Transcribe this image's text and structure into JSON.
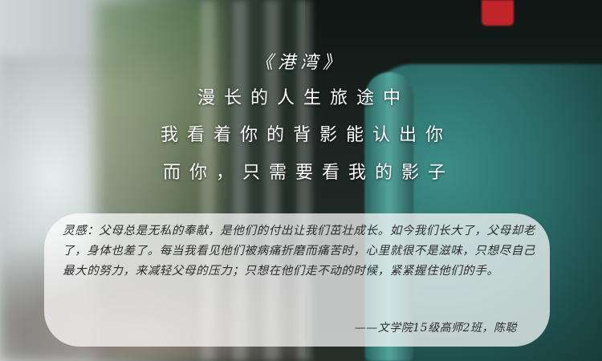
{
  "poem": {
    "title": "《港湾》",
    "lines": [
      "漫长的人生旅途中",
      "我看着你的背影能认出你",
      "而你，只需要看我的影子"
    ]
  },
  "reflection": {
    "text": "灵感：父母总是无私的奉献，是他们的付出让我们茁壮成长。如今我们长大了，父母却老了，身体也差了。每当我看见他们被病痛折磨而痛苦时，心里就很不是滋味，只想尽自己最大的努力，来减轻父母的压力；只想在他们走不动的时候，紧紧握住他们的手。",
    "signature": "——文学院15级高师2班，陈聪"
  },
  "colors": {
    "teal_mailbox": "#2b6c69",
    "red_flag": "#c0252a",
    "text_light": "#ffffff",
    "text_dark": "#2c2c2c"
  }
}
